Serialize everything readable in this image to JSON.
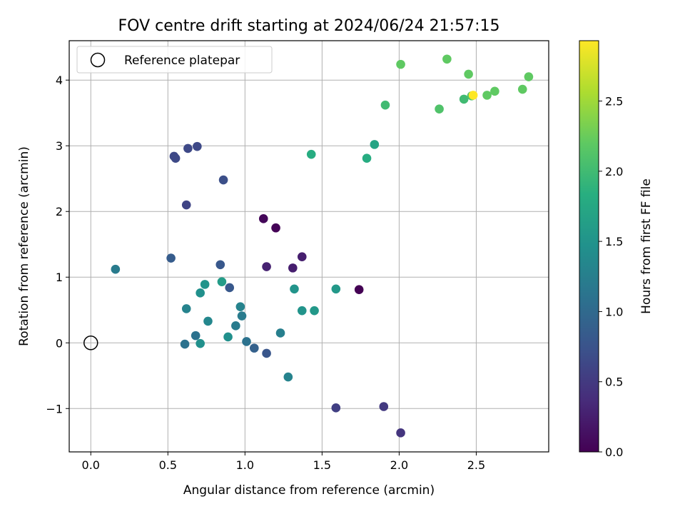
{
  "chart_data": {
    "type": "scatter",
    "title": "FOV centre drift starting at 2024/06/24 21:57:15",
    "xlabel": "Angular distance from reference (arcmin)",
    "ylabel": "Rotation from reference (arcmin)",
    "xlim": [
      -0.14,
      2.97
    ],
    "ylim": [
      -1.66,
      4.6
    ],
    "xticks": [
      0.0,
      0.5,
      1.0,
      1.5,
      2.0,
      2.5
    ],
    "xtick_labels": [
      "0.0",
      "0.5",
      "1.0",
      "1.5",
      "2.0",
      "2.5"
    ],
    "yticks": [
      -1,
      0,
      1,
      2,
      3,
      4
    ],
    "ytick_labels": [
      "−1",
      "0",
      "1",
      "2",
      "3",
      "4"
    ],
    "grid": true,
    "legend": {
      "position": "top-left",
      "entries": [
        "Reference platepar"
      ]
    },
    "reference_point": {
      "x": 0.0,
      "y": 0.0
    },
    "colorbar": {
      "label": "Hours from first FF file",
      "range": [
        0.0,
        2.93
      ],
      "ticks": [
        0.0,
        0.5,
        1.0,
        1.5,
        2.0,
        2.5
      ],
      "tick_labels": [
        "0.0",
        "0.5",
        "1.0",
        "1.5",
        "2.0",
        "2.5"
      ],
      "colormap": "viridis"
    },
    "points": [
      {
        "x": 1.12,
        "y": 1.89,
        "c": 0.05
      },
      {
        "x": 1.2,
        "y": 1.75,
        "c": 0.02
      },
      {
        "x": 1.74,
        "y": 0.81,
        "c": 0.0
      },
      {
        "x": 1.37,
        "y": 1.31,
        "c": 0.25
      },
      {
        "x": 1.14,
        "y": 1.16,
        "c": 0.28
      },
      {
        "x": 1.31,
        "y": 1.14,
        "c": 0.25
      },
      {
        "x": 2.01,
        "y": -1.37,
        "c": 0.45
      },
      {
        "x": 1.9,
        "y": -0.97,
        "c": 0.5
      },
      {
        "x": 1.59,
        "y": -0.99,
        "c": 0.55
      },
      {
        "x": 0.62,
        "y": 2.1,
        "c": 0.6
      },
      {
        "x": 0.86,
        "y": 2.48,
        "c": 0.7
      },
      {
        "x": 0.54,
        "y": 2.84,
        "c": 0.65
      },
      {
        "x": 0.55,
        "y": 2.81,
        "c": 0.65
      },
      {
        "x": 0.63,
        "y": 2.96,
        "c": 0.65
      },
      {
        "x": 0.69,
        "y": 2.99,
        "c": 0.65
      },
      {
        "x": 0.84,
        "y": 1.19,
        "c": 0.8
      },
      {
        "x": 0.52,
        "y": 1.29,
        "c": 0.85
      },
      {
        "x": 0.9,
        "y": 0.84,
        "c": 0.8
      },
      {
        "x": 1.14,
        "y": -0.16,
        "c": 0.78
      },
      {
        "x": 1.06,
        "y": -0.08,
        "c": 0.9
      },
      {
        "x": 1.01,
        "y": 0.02,
        "c": 1.1
      },
      {
        "x": 0.94,
        "y": 0.26,
        "c": 1.2
      },
      {
        "x": 0.98,
        "y": 0.41,
        "c": 1.2
      },
      {
        "x": 0.97,
        "y": 0.55,
        "c": 1.3
      },
      {
        "x": 0.61,
        "y": -0.02,
        "c": 1.1
      },
      {
        "x": 0.68,
        "y": 0.11,
        "c": 1.1
      },
      {
        "x": 0.62,
        "y": 0.52,
        "c": 1.3
      },
      {
        "x": 0.16,
        "y": 1.12,
        "c": 1.2
      },
      {
        "x": 1.23,
        "y": 0.15,
        "c": 1.25
      },
      {
        "x": 1.28,
        "y": -0.52,
        "c": 1.3
      },
      {
        "x": 0.76,
        "y": 0.33,
        "c": 1.35
      },
      {
        "x": 0.71,
        "y": -0.01,
        "c": 1.45
      },
      {
        "x": 0.89,
        "y": 0.09,
        "c": 1.45
      },
      {
        "x": 0.71,
        "y": 0.76,
        "c": 1.45
      },
      {
        "x": 0.74,
        "y": 0.89,
        "c": 1.5
      },
      {
        "x": 0.85,
        "y": 0.93,
        "c": 1.6
      },
      {
        "x": 1.32,
        "y": 0.82,
        "c": 1.5
      },
      {
        "x": 1.37,
        "y": 0.49,
        "c": 1.5
      },
      {
        "x": 1.45,
        "y": 0.49,
        "c": 1.55
      },
      {
        "x": 1.59,
        "y": 0.82,
        "c": 1.55
      },
      {
        "x": 1.43,
        "y": 2.87,
        "c": 1.8
      },
      {
        "x": 1.79,
        "y": 2.81,
        "c": 1.8
      },
      {
        "x": 1.84,
        "y": 3.02,
        "c": 1.7
      },
      {
        "x": 1.91,
        "y": 3.62,
        "c": 2.0
      },
      {
        "x": 2.01,
        "y": 4.24,
        "c": 2.2
      },
      {
        "x": 2.26,
        "y": 3.56,
        "c": 2.1
      },
      {
        "x": 2.31,
        "y": 4.32,
        "c": 2.2
      },
      {
        "x": 2.42,
        "y": 3.71,
        "c": 2.0
      },
      {
        "x": 2.45,
        "y": 4.09,
        "c": 2.2
      },
      {
        "x": 2.47,
        "y": 3.76,
        "c": 2.1
      },
      {
        "x": 2.48,
        "y": 3.77,
        "c": 2.93
      },
      {
        "x": 2.57,
        "y": 3.77,
        "c": 2.2
      },
      {
        "x": 2.62,
        "y": 3.83,
        "c": 2.2
      },
      {
        "x": 2.8,
        "y": 3.86,
        "c": 2.2
      },
      {
        "x": 2.84,
        "y": 4.05,
        "c": 2.2
      }
    ]
  }
}
